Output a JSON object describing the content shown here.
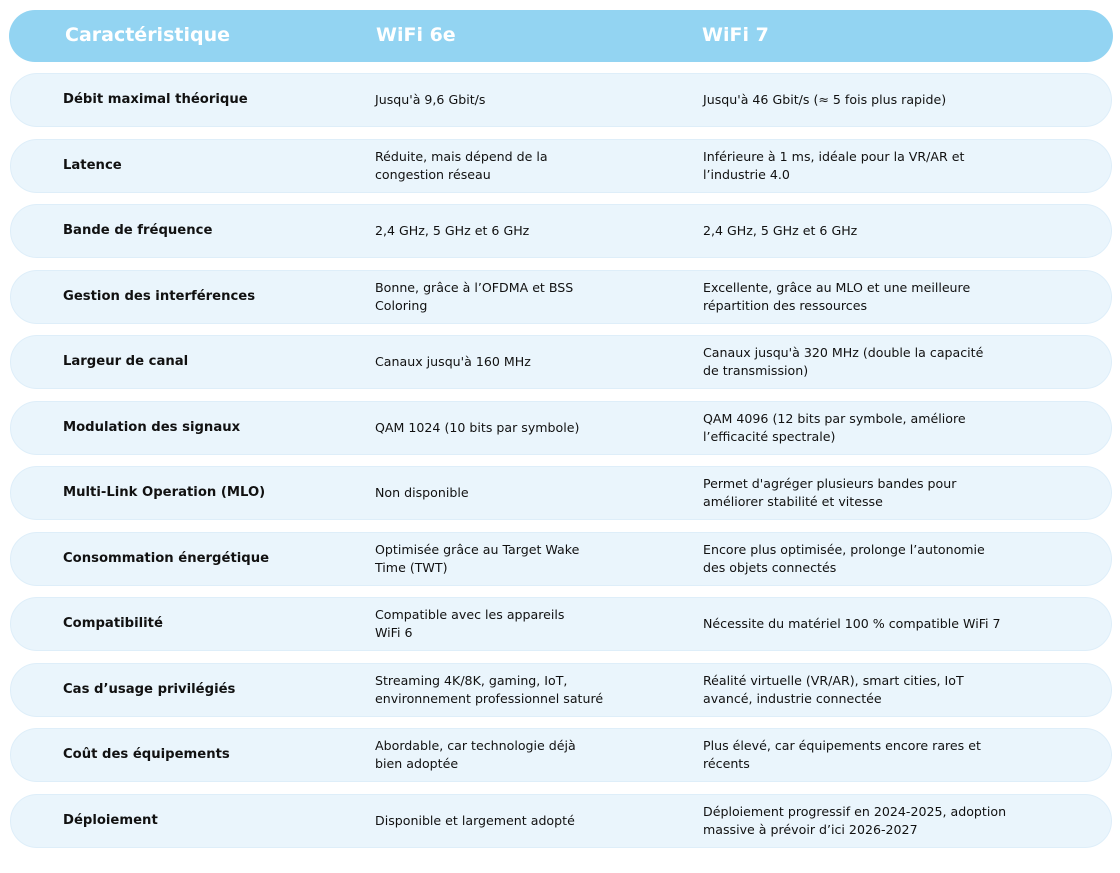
{
  "header": {
    "col0": "Caractéristique",
    "col1": "WiFi 6e",
    "col2": "WiFi 7"
  },
  "colors": {
    "header_bg": "#93d4f2",
    "row_bg": "#eaf5fc"
  },
  "rows": [
    {
      "feature": "Débit maximal théorique",
      "wifi6e": "Jusqu'à 9,6 Gbit/s",
      "wifi7": "Jusqu'à 46 Gbit/s (≈ 5 fois plus rapide)"
    },
    {
      "feature": "Latence",
      "wifi6e": "Réduite, mais dépend de la\ncongestion réseau",
      "wifi7": "Inférieure à 1 ms, idéale pour la VR/AR et\nl’industrie 4.0"
    },
    {
      "feature": "Bande de fréquence",
      "wifi6e": "2,4 GHz, 5 GHz et 6 GHz",
      "wifi7": "2,4 GHz, 5 GHz et 6 GHz"
    },
    {
      "feature": "Gestion des interférences",
      "wifi6e": "Bonne, grâce à l’OFDMA et BSS\nColoring",
      "wifi7": "Excellente, grâce au MLO et une meilleure\nrépartition des ressources"
    },
    {
      "feature": "Largeur de canal",
      "wifi6e": "Canaux jusqu'à 160 MHz",
      "wifi7": "Canaux jusqu'à 320 MHz (double la capacité\nde transmission)"
    },
    {
      "feature": "Modulation des signaux",
      "wifi6e": "QAM 1024 (10 bits par symbole)",
      "wifi7": "QAM 4096 (12 bits par symbole, améliore\nl’efficacité spectrale)"
    },
    {
      "feature": "Multi-Link Operation (MLO)",
      "wifi6e": "Non disponible",
      "wifi7": "Permet d'agréger plusieurs bandes pour\naméliorer stabilité et vitesse"
    },
    {
      "feature": "Consommation énergétique",
      "wifi6e": "Optimisée grâce au Target Wake\nTime (TWT)",
      "wifi7": "Encore plus optimisée, prolonge l’autonomie\ndes objets connectés"
    },
    {
      "feature": "Compatibilité",
      "wifi6e": "Compatible avec les appareils\nWiFi 6",
      "wifi7": "Nécessite du matériel 100 % compatible WiFi 7"
    },
    {
      "feature": "Cas d’usage privilégiés",
      "wifi6e": "Streaming 4K/8K, gaming, IoT,\nenvironnement professionnel saturé",
      "wifi7": "Réalité virtuelle (VR/AR), smart cities, IoT\navancé, industrie connectée"
    },
    {
      "feature": "Coût des équipements",
      "wifi6e": "Abordable, car technologie déjà\nbien adoptée",
      "wifi7": "Plus élevé, car équipements encore rares et\nrécents"
    },
    {
      "feature": "Déploiement",
      "wifi6e": "Disponible et largement adopté",
      "wifi7": "Déploiement progressif en 2024-2025, adoption\nmassive à prévoir d’ici 2026-2027"
    }
  ]
}
